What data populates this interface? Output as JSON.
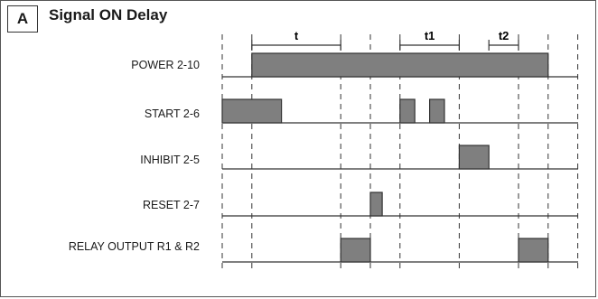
{
  "header": {
    "letter": "A",
    "title": "Signal ON Delay"
  },
  "intervals": [
    {
      "label": "t",
      "start": 1,
      "end": 4
    },
    {
      "label": "t1",
      "start": 6,
      "end": 8
    },
    {
      "label": "t2",
      "start": 9,
      "end": 10
    }
  ],
  "signals": [
    {
      "label": "POWER 2-10",
      "pulses": [
        [
          1,
          11
        ]
      ]
    },
    {
      "label": "START 2-6",
      "pulses": [
        [
          0,
          2
        ],
        [
          6,
          6.5
        ],
        [
          7,
          7.5
        ]
      ]
    },
    {
      "label": "INHIBIT 2-5",
      "pulses": [
        [
          8,
          9
        ]
      ]
    },
    {
      "label": "RESET 2-7",
      "pulses": [
        [
          5,
          5.4
        ]
      ]
    },
    {
      "label": "RELAY OUTPUT R1 & R2",
      "pulses": [
        [
          4,
          5
        ],
        [
          10,
          11
        ]
      ]
    }
  ],
  "timeline": {
    "marks": [
      0,
      1,
      4,
      5,
      6,
      8,
      10,
      11,
      12
    ]
  },
  "colors": {
    "pulse_fill": "#7f7f7f",
    "line": "#333333"
  }
}
